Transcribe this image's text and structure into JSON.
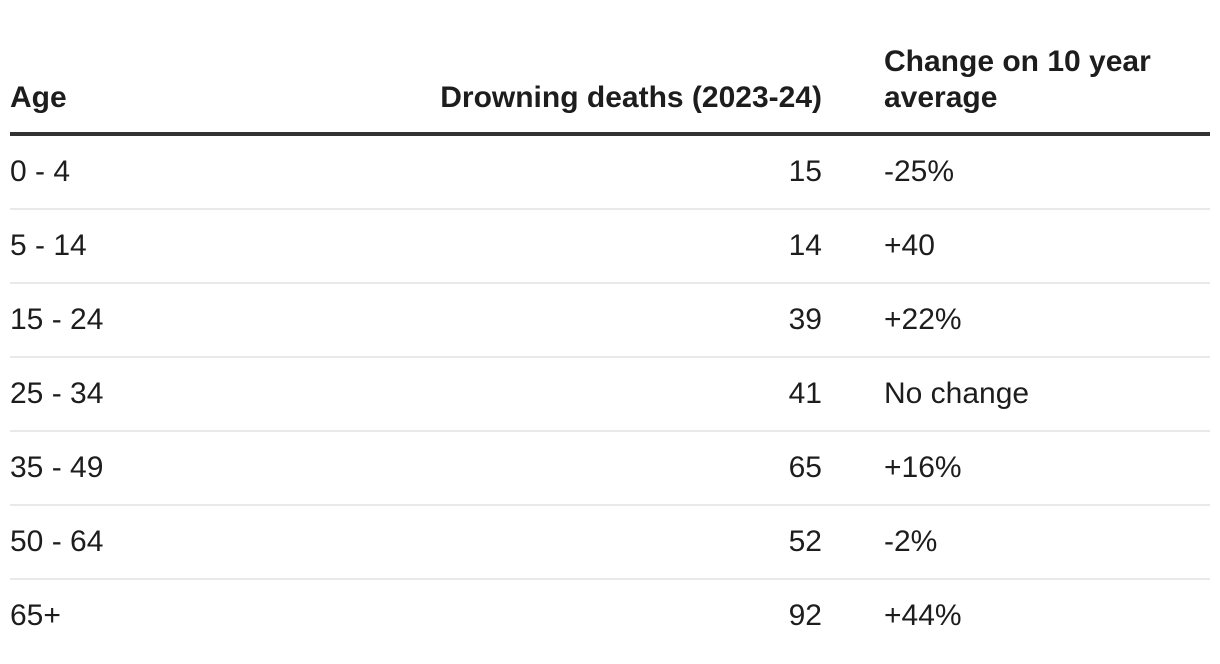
{
  "colors": {
    "background": "#ffffff",
    "text": "#1d1d1d",
    "header_border": "#333333",
    "row_border": "#e9e9e9"
  },
  "table": {
    "headers": [
      {
        "label": "Age"
      },
      {
        "label": "Drowning deaths (2023-24)"
      },
      {
        "label": "Change on 10 year average"
      }
    ],
    "rows": [
      {
        "age": "0 - 4",
        "deaths": "15",
        "change": "-25%"
      },
      {
        "age": "5 - 14",
        "deaths": "14",
        "change": "+40"
      },
      {
        "age": "15 - 24",
        "deaths": "39",
        "change": "+22%"
      },
      {
        "age": "25 - 34",
        "deaths": "41",
        "change": "No change"
      },
      {
        "age": "35 - 49",
        "deaths": "65",
        "change": "+16%"
      },
      {
        "age": "50 - 64",
        "deaths": "52",
        "change": "-2%"
      },
      {
        "age": "65+",
        "deaths": "92",
        "change": "+44%"
      }
    ]
  },
  "chart_data": {
    "type": "table",
    "columns": [
      "Age",
      "Drowning deaths (2023-24)",
      "Change on 10 year average"
    ],
    "rows": [
      [
        "0 - 4",
        15,
        "-25%"
      ],
      [
        "5 - 14",
        14,
        "+40"
      ],
      [
        "15 - 24",
        39,
        "+22%"
      ],
      [
        "25 - 34",
        41,
        "No change"
      ],
      [
        "35 - 49",
        65,
        "+16%"
      ],
      [
        "50 - 64",
        52,
        "-2%"
      ],
      [
        "65+",
        92,
        "+44%"
      ]
    ]
  }
}
